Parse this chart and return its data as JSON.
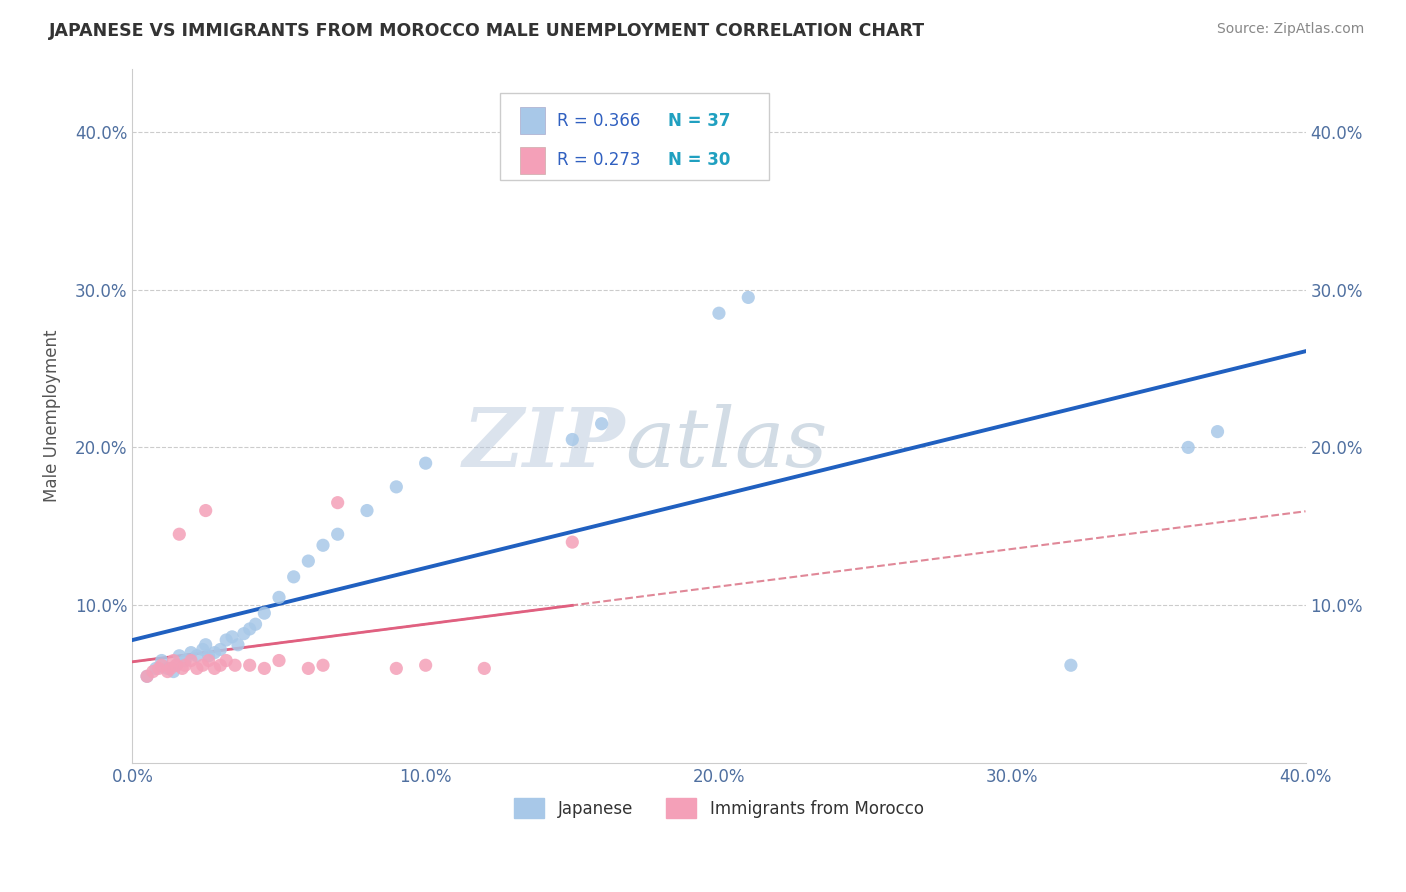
{
  "title": "JAPANESE VS IMMIGRANTS FROM MOROCCO MALE UNEMPLOYMENT CORRELATION CHART",
  "source_text": "Source: ZipAtlas.com",
  "ylabel": "Male Unemployment",
  "xlim": [
    0.0,
    0.4
  ],
  "ylim": [
    0.0,
    0.44
  ],
  "xticks": [
    0.0,
    0.1,
    0.2,
    0.3,
    0.4
  ],
  "xtick_labels": [
    "0.0%",
    "10.0%",
    "20.0%",
    "30.0%",
    "40.0%"
  ],
  "yticks": [
    0.1,
    0.2,
    0.3,
    0.4
  ],
  "ytick_labels": [
    "10.0%",
    "20.0%",
    "30.0%",
    "40.0%"
  ],
  "watermark_zip": "ZIP",
  "watermark_atlas": "atlas",
  "legend_R1": "R = 0.366",
  "legend_N1": "N = 37",
  "legend_R2": "R = 0.273",
  "legend_N2": "N = 30",
  "series1_color": "#A8C8E8",
  "series2_color": "#F4A0B8",
  "trend1_color": "#2060C0",
  "trend2_solid_color": "#E06080",
  "trend2_dashed_color": "#E08898",
  "text_blue": "#3060C0",
  "text_cyan": "#20A0C0",
  "japanese_x": [
    0.005,
    0.008,
    0.01,
    0.012,
    0.014,
    0.015,
    0.016,
    0.018,
    0.02,
    0.022,
    0.024,
    0.025,
    0.026,
    0.028,
    0.03,
    0.032,
    0.034,
    0.036,
    0.038,
    0.04,
    0.042,
    0.045,
    0.05,
    0.055,
    0.06,
    0.065,
    0.07,
    0.08,
    0.09,
    0.1,
    0.15,
    0.16,
    0.2,
    0.21,
    0.32,
    0.36,
    0.37
  ],
  "japanese_y": [
    0.055,
    0.06,
    0.065,
    0.06,
    0.058,
    0.062,
    0.068,
    0.065,
    0.07,
    0.068,
    0.072,
    0.075,
    0.068,
    0.07,
    0.072,
    0.078,
    0.08,
    0.075,
    0.082,
    0.085,
    0.088,
    0.095,
    0.105,
    0.118,
    0.128,
    0.138,
    0.145,
    0.16,
    0.175,
    0.19,
    0.205,
    0.215,
    0.285,
    0.295,
    0.062,
    0.2,
    0.21
  ],
  "morocco_x": [
    0.005,
    0.007,
    0.009,
    0.01,
    0.012,
    0.013,
    0.014,
    0.015,
    0.016,
    0.017,
    0.018,
    0.02,
    0.022,
    0.024,
    0.025,
    0.026,
    0.028,
    0.03,
    0.032,
    0.035,
    0.04,
    0.045,
    0.05,
    0.06,
    0.065,
    0.07,
    0.09,
    0.1,
    0.12,
    0.15
  ],
  "morocco_y": [
    0.055,
    0.058,
    0.06,
    0.062,
    0.058,
    0.06,
    0.065,
    0.062,
    0.145,
    0.06,
    0.062,
    0.065,
    0.06,
    0.062,
    0.16,
    0.065,
    0.06,
    0.062,
    0.065,
    0.062,
    0.062,
    0.06,
    0.065,
    0.06,
    0.062,
    0.165,
    0.06,
    0.062,
    0.06,
    0.14
  ]
}
